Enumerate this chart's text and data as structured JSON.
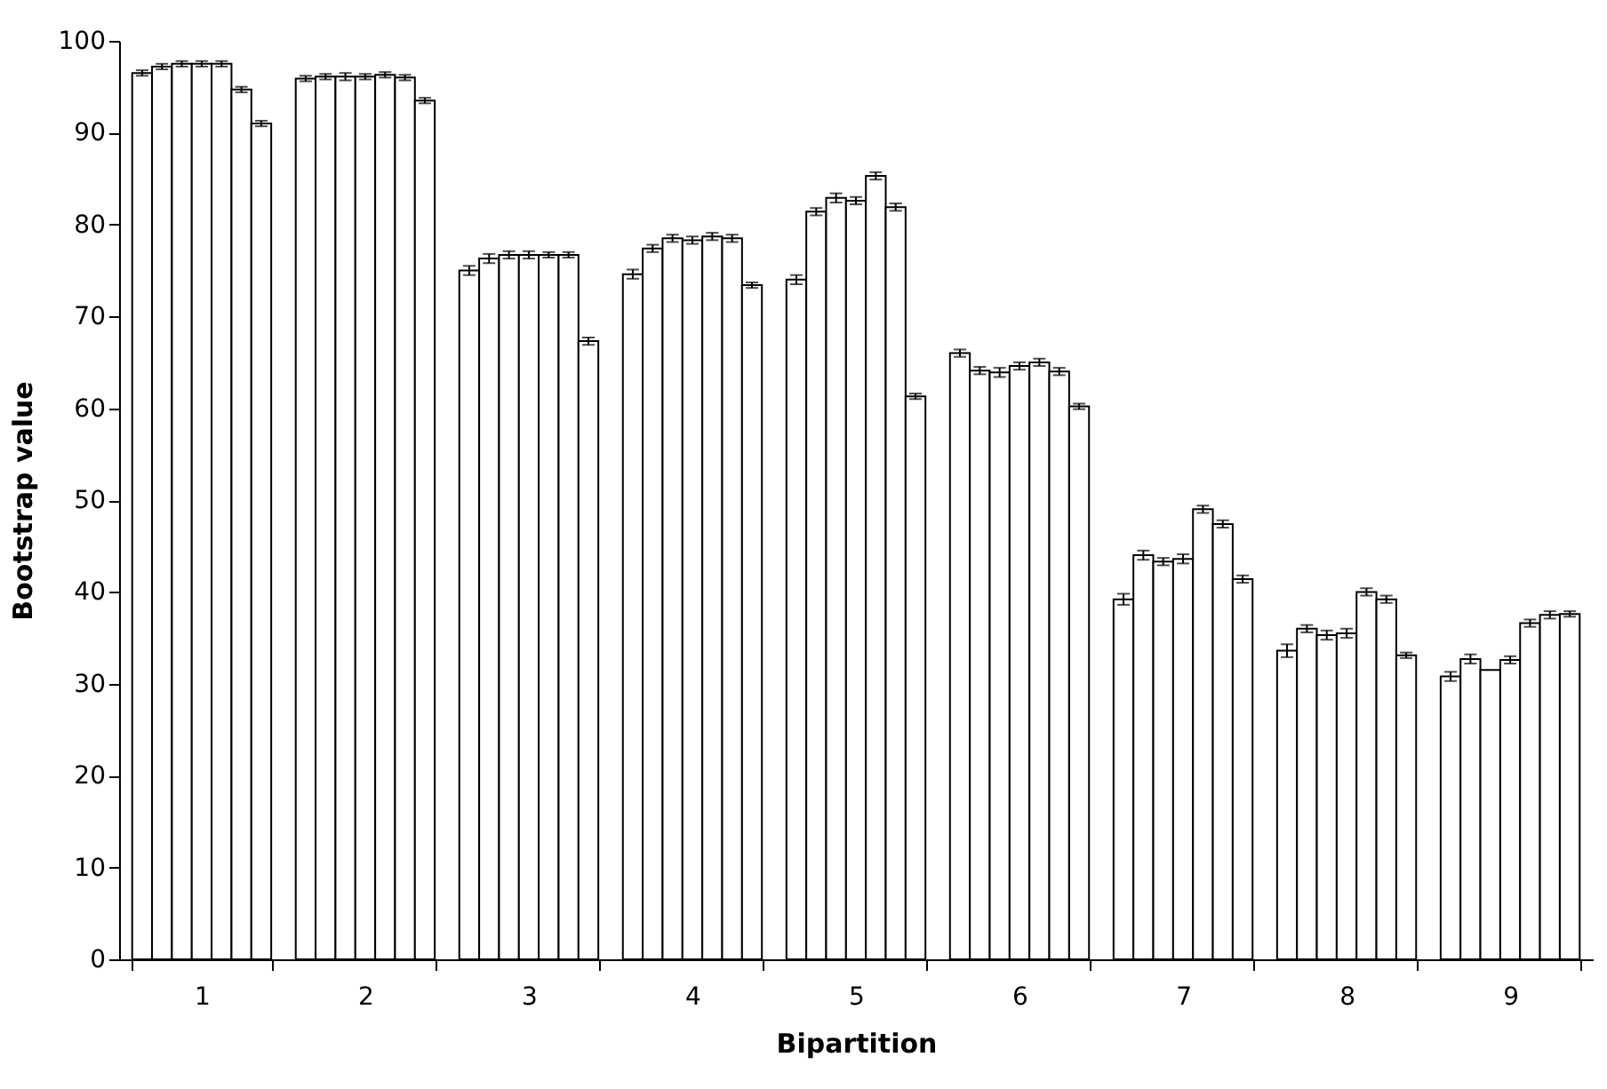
{
  "chart_data": {
    "type": "bar",
    "xlabel": "Bipartition",
    "ylabel": "Bootstrap value",
    "categories": [
      "1",
      "2",
      "3",
      "4",
      "5",
      "6",
      "7",
      "8",
      "9"
    ],
    "series": [
      {
        "color": "#ffffff",
        "values": [
          96.5,
          95.9,
          75.0,
          74.6,
          74.0,
          66.0,
          39.2,
          33.6,
          30.8
        ],
        "errors": [
          0.3,
          0.3,
          0.5,
          0.5,
          0.5,
          0.4,
          0.6,
          0.7,
          0.5
        ]
      },
      {
        "color": "#ffffff",
        "values": [
          97.2,
          96.1,
          76.3,
          77.4,
          81.4,
          64.1,
          44.0,
          36.0,
          32.7
        ],
        "errors": [
          0.3,
          0.3,
          0.5,
          0.4,
          0.4,
          0.4,
          0.5,
          0.4,
          0.5
        ]
      },
      {
        "color": "#ffffff",
        "values": [
          97.5,
          96.1,
          76.7,
          78.5,
          82.9,
          63.9,
          43.3,
          35.3,
          31.5
        ],
        "errors": [
          0.3,
          0.4,
          0.4,
          0.4,
          0.5,
          0.5,
          0.4,
          0.5,
          null
        ]
      },
      {
        "color": "#ffffff",
        "values": [
          97.5,
          96.1,
          76.7,
          78.3,
          82.6,
          64.6,
          43.6,
          35.5,
          32.6
        ],
        "errors": [
          0.3,
          0.3,
          0.4,
          0.4,
          0.4,
          0.4,
          0.5,
          0.5,
          0.4
        ]
      },
      {
        "color": "#ffffff",
        "values": [
          97.5,
          96.3,
          76.7,
          78.7,
          85.3,
          65.0,
          49.0,
          40.0,
          36.6
        ],
        "errors": [
          0.3,
          0.3,
          0.3,
          0.4,
          0.4,
          0.4,
          0.4,
          0.4,
          0.4
        ]
      },
      {
        "color": "#ffffff",
        "values": [
          94.7,
          96.0,
          76.7,
          78.5,
          81.9,
          64.0,
          47.4,
          39.2,
          37.5
        ],
        "errors": [
          0.3,
          0.3,
          0.3,
          0.4,
          0.4,
          0.4,
          0.4,
          0.4,
          0.4
        ]
      },
      {
        "color": "#ffffff",
        "values": [
          91.0,
          93.5,
          67.3,
          73.4,
          61.3,
          60.2,
          41.4,
          33.1,
          37.6
        ],
        "errors": [
          0.3,
          0.3,
          0.4,
          0.3,
          0.3,
          0.3,
          0.4,
          0.3,
          0.3
        ]
      }
    ],
    "ylim": [
      0,
      100
    ],
    "yticks": [
      0,
      10,
      20,
      30,
      40,
      50,
      60,
      70,
      80,
      90,
      100
    ],
    "grid": false,
    "legend": false
  }
}
